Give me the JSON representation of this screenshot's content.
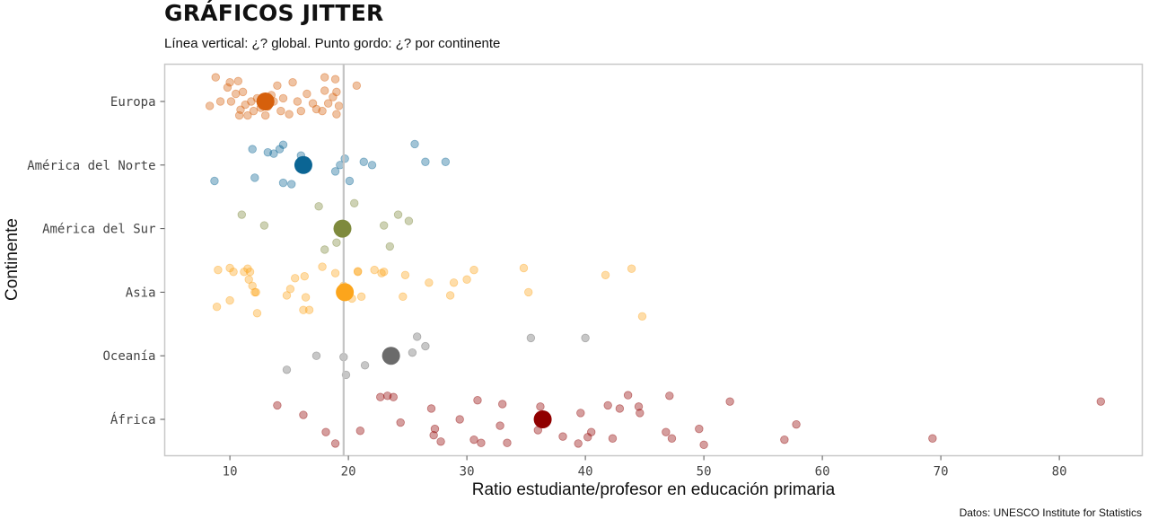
{
  "title": "GRÁFICOS JITTER",
  "subtitle": "Línea vertical: ¿? global. Punto gordo: ¿? por continente",
  "caption": "Datos: UNESCO Institute for Statistics",
  "chart_data": {
    "type": "scatter",
    "xlabel": "Ratio estudiante/profesor en educación primaria",
    "ylabel": "Continente",
    "xlim": [
      4.5,
      87
    ],
    "xticks": [
      10,
      20,
      30,
      40,
      50,
      60,
      70,
      80
    ],
    "categories": [
      "Europa",
      "América del Norte",
      "América del Sur",
      "Asia",
      "Oceanía",
      "África"
    ],
    "global_mean": 19.6,
    "grid": false,
    "legend": "none",
    "series": [
      {
        "category": "Europa",
        "color": "#d6600c",
        "mean": 13.0,
        "points": [
          [
            8.3,
            -0.07
          ],
          [
            8.8,
            0.38
          ],
          [
            9.2,
            0.0
          ],
          [
            9.8,
            0.22
          ],
          [
            10.0,
            0.3
          ],
          [
            10.1,
            0.0
          ],
          [
            10.5,
            0.12
          ],
          [
            10.7,
            0.32
          ],
          [
            10.9,
            -0.13
          ],
          [
            11.1,
            0.15
          ],
          [
            11.3,
            -0.05
          ],
          [
            11.5,
            -0.22
          ],
          [
            11.8,
            0.0
          ],
          [
            12.0,
            -0.15
          ],
          [
            12.3,
            0.05
          ],
          [
            12.6,
            -0.1
          ],
          [
            13.0,
            -0.22
          ],
          [
            13.2,
            -0.08
          ],
          [
            13.5,
            0.1
          ],
          [
            13.7,
            0.0
          ],
          [
            14.0,
            0.25
          ],
          [
            14.3,
            -0.15
          ],
          [
            14.5,
            0.05
          ],
          [
            15.0,
            -0.2
          ],
          [
            15.3,
            0.3
          ],
          [
            15.7,
            0.0
          ],
          [
            16.0,
            -0.15
          ],
          [
            16.5,
            0.12
          ],
          [
            17.0,
            -0.03
          ],
          [
            17.3,
            -0.12
          ],
          [
            17.8,
            -0.15
          ],
          [
            18.0,
            0.17
          ],
          [
            18.0,
            0.38
          ],
          [
            18.3,
            -0.03
          ],
          [
            18.7,
            0.07
          ],
          [
            18.9,
            0.35
          ],
          [
            19.0,
            0.15
          ],
          [
            19.2,
            -0.07
          ],
          [
            19.0,
            -0.2
          ],
          [
            20.7,
            0.25
          ],
          [
            10.8,
            -0.22
          ]
        ]
      },
      {
        "category": "América del Norte",
        "color": "#0b6594",
        "mean": 16.2,
        "points": [
          [
            8.7,
            -0.25
          ],
          [
            11.9,
            0.25
          ],
          [
            12.1,
            -0.2
          ],
          [
            13.2,
            0.2
          ],
          [
            13.7,
            0.18
          ],
          [
            14.2,
            0.25
          ],
          [
            14.5,
            0.32
          ],
          [
            14.5,
            -0.28
          ],
          [
            15.2,
            -0.3
          ],
          [
            16.0,
            0.15
          ],
          [
            18.9,
            -0.1
          ],
          [
            19.3,
            0.0
          ],
          [
            19.7,
            0.1
          ],
          [
            20.1,
            -0.25
          ],
          [
            21.3,
            0.05
          ],
          [
            22.0,
            0.0
          ],
          [
            25.6,
            0.33
          ],
          [
            26.5,
            0.05
          ],
          [
            28.2,
            0.05
          ]
        ]
      },
      {
        "category": "América del Sur",
        "color": "#7e8a3d",
        "mean": 19.5,
        "points": [
          [
            11.0,
            0.22
          ],
          [
            12.9,
            0.05
          ],
          [
            17.5,
            0.35
          ],
          [
            18.0,
            -0.33
          ],
          [
            19.0,
            -0.22
          ],
          [
            20.5,
            0.4
          ],
          [
            23.0,
            0.05
          ],
          [
            23.5,
            -0.28
          ],
          [
            24.2,
            0.22
          ],
          [
            25.1,
            0.12
          ]
        ]
      },
      {
        "category": "Asia",
        "color": "#fca51c",
        "mean": 19.7,
        "points": [
          [
            8.9,
            -0.23
          ],
          [
            9.0,
            0.35
          ],
          [
            10.0,
            -0.13
          ],
          [
            10.0,
            0.38
          ],
          [
            10.3,
            0.32
          ],
          [
            11.2,
            0.32
          ],
          [
            11.5,
            0.37
          ],
          [
            11.6,
            0.2
          ],
          [
            11.7,
            0.32
          ],
          [
            11.9,
            0.1
          ],
          [
            12.1,
            0.0
          ],
          [
            12.2,
            0.0
          ],
          [
            12.3,
            -0.33
          ],
          [
            14.8,
            -0.05
          ],
          [
            15.1,
            0.05
          ],
          [
            15.5,
            0.22
          ],
          [
            16.2,
            -0.28
          ],
          [
            16.3,
            0.25
          ],
          [
            16.4,
            -0.08
          ],
          [
            16.7,
            -0.28
          ],
          [
            17.8,
            0.4
          ],
          [
            18.9,
            0.3
          ],
          [
            19.6,
            0.1
          ],
          [
            20.3,
            -0.1
          ],
          [
            20.8,
            0.32
          ],
          [
            21.1,
            -0.07
          ],
          [
            22.2,
            0.35
          ],
          [
            22.8,
            0.3
          ],
          [
            23.0,
            0.32
          ],
          [
            24.6,
            -0.07
          ],
          [
            24.8,
            0.27
          ],
          [
            26.8,
            0.15
          ],
          [
            28.6,
            -0.05
          ],
          [
            28.9,
            0.15
          ],
          [
            30.0,
            0.2
          ],
          [
            30.6,
            0.35
          ],
          [
            34.8,
            0.38
          ],
          [
            35.2,
            0.0
          ],
          [
            41.7,
            0.27
          ],
          [
            43.9,
            0.37
          ],
          [
            44.8,
            -0.38
          ],
          [
            20.8,
            0.33
          ],
          [
            19.8,
            -0.05
          ]
        ]
      },
      {
        "category": "Oceanía",
        "color": "#6b6b6b",
        "mean": 23.6,
        "points": [
          [
            14.8,
            -0.22
          ],
          [
            17.3,
            0.0
          ],
          [
            19.6,
            -0.02
          ],
          [
            19.8,
            -0.3
          ],
          [
            21.4,
            -0.15
          ],
          [
            25.4,
            0.05
          ],
          [
            25.8,
            0.3
          ],
          [
            26.5,
            0.15
          ],
          [
            35.4,
            0.28
          ],
          [
            40.0,
            0.28
          ]
        ]
      },
      {
        "category": "África",
        "color": "#900000",
        "mean": 36.4,
        "points": [
          [
            14.0,
            0.22
          ],
          [
            16.2,
            0.07
          ],
          [
            18.1,
            -0.2
          ],
          [
            18.9,
            -0.38
          ],
          [
            21.0,
            -0.18
          ],
          [
            22.7,
            0.35
          ],
          [
            23.3,
            0.37
          ],
          [
            23.8,
            0.35
          ],
          [
            24.4,
            -0.05
          ],
          [
            27.0,
            0.17
          ],
          [
            27.2,
            -0.25
          ],
          [
            27.3,
            -0.15
          ],
          [
            27.8,
            -0.35
          ],
          [
            29.4,
            0.0
          ],
          [
            30.6,
            -0.32
          ],
          [
            30.9,
            0.3
          ],
          [
            31.2,
            -0.37
          ],
          [
            32.8,
            -0.1
          ],
          [
            33.0,
            0.24
          ],
          [
            33.4,
            -0.37
          ],
          [
            36.0,
            -0.17
          ],
          [
            36.2,
            0.2
          ],
          [
            38.1,
            -0.27
          ],
          [
            39.4,
            -0.38
          ],
          [
            39.6,
            0.1
          ],
          [
            40.2,
            -0.28
          ],
          [
            40.5,
            -0.2
          ],
          [
            41.9,
            0.22
          ],
          [
            42.3,
            -0.3
          ],
          [
            42.9,
            0.17
          ],
          [
            43.6,
            0.38
          ],
          [
            44.5,
            0.2
          ],
          [
            44.6,
            0.1
          ],
          [
            46.8,
            -0.2
          ],
          [
            47.1,
            0.37
          ],
          [
            47.3,
            -0.3
          ],
          [
            49.6,
            -0.15
          ],
          [
            50.0,
            -0.4
          ],
          [
            52.2,
            0.28
          ],
          [
            56.8,
            -0.32
          ],
          [
            57.8,
            -0.08
          ],
          [
            69.3,
            -0.3
          ],
          [
            83.5,
            0.28
          ]
        ]
      }
    ]
  }
}
